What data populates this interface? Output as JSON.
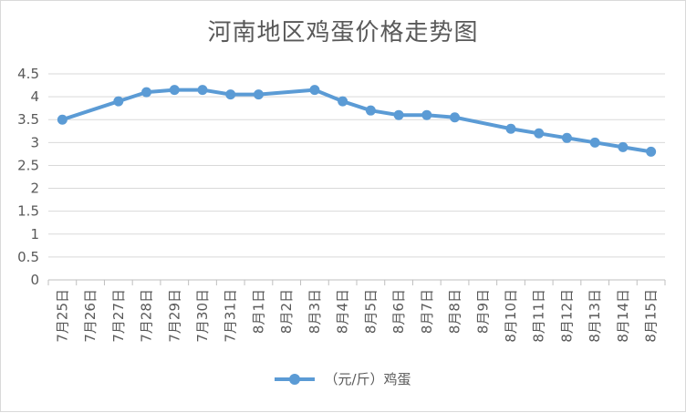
{
  "chart_data": {
    "type": "line",
    "title": "河南地区鸡蛋价格走势图",
    "categories": [
      "7月25日",
      "7月26日",
      "7月27日",
      "7月28日",
      "7月29日",
      "7月30日",
      "7月31日",
      "8月1日",
      "8月2日",
      "8月3日",
      "8月4日",
      "8月5日",
      "8月6日",
      "8月7日",
      "8月8日",
      "8月9日",
      "8月10日",
      "8月11日",
      "8月12日",
      "8月13日",
      "8月14日",
      "8月15日"
    ],
    "series": [
      {
        "name": "（元/斤）鸡蛋",
        "color": "#5b9bd5",
        "values": [
          3.5,
          null,
          3.9,
          4.1,
          4.15,
          4.15,
          4.05,
          4.05,
          null,
          4.15,
          3.9,
          3.7,
          3.6,
          3.6,
          3.55,
          null,
          3.3,
          3.2,
          3.1,
          3.0,
          2.9,
          2.8
        ]
      }
    ],
    "y_ticks": [
      "0",
      "0.5",
      "1",
      "1.5",
      "2",
      "2.5",
      "3",
      "3.5",
      "4",
      "4.5"
    ],
    "ylim": [
      0,
      4.5
    ],
    "grid": true,
    "legend_position": "bottom"
  }
}
